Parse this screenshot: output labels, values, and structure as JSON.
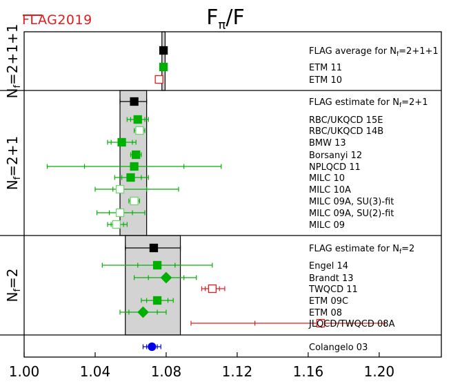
{
  "logo": {
    "text": "FLAG2019",
    "color": "#e41a1c"
  },
  "chart_data": {
    "type": "scatter",
    "title": "Fπ/F",
    "xlabel": "",
    "xlim": [
      1.0,
      1.235
    ],
    "xticks": [
      1.0,
      1.04,
      1.08,
      1.12,
      1.16,
      1.2
    ],
    "xtick_labels": [
      "1.00",
      "1.04",
      "1.08",
      "1.12",
      "1.16",
      "1.20"
    ],
    "colors": {
      "green": "#00b000",
      "red": "#e41a1c",
      "blue": "#0000ee",
      "black": "#000000",
      "band": "#d3d3d3"
    },
    "panels": [
      {
        "label": "Nf=2+1+1",
        "band": [
          1.0776,
          1.0794
        ],
        "points": [
          {
            "name": "FLAG average for Nf=2+1+1",
            "x": 1.0785,
            "lo": 1.0776,
            "hi": 1.0794,
            "stat_lo": 1.0776,
            "stat_hi": 1.0794,
            "marker": "square",
            "fill": "filled",
            "color": "#000000"
          },
          {
            "name": "ETM 11",
            "x": 1.0785,
            "lo": 1.0774,
            "hi": 1.0796,
            "stat_lo": 1.0774,
            "stat_hi": 1.0796,
            "marker": "square",
            "fill": "filled",
            "color": "#00b000"
          },
          {
            "name": "ETM 10",
            "x": 1.076,
            "lo": 1.0746,
            "hi": 1.0774,
            "stat_lo": 1.0746,
            "stat_hi": 1.0774,
            "marker": "square",
            "fill": "open",
            "color": "#e41a1c"
          }
        ]
      },
      {
        "label": "Nf=2+1",
        "band": [
          1.054,
          1.069
        ],
        "points": [
          {
            "name": "FLAG estimate for Nf=2+1",
            "x": 1.062,
            "lo": 1.054,
            "hi": 1.069,
            "stat_lo": 1.054,
            "stat_hi": 1.069,
            "marker": "square",
            "fill": "filled",
            "color": "#000000"
          },
          {
            "name": "RBC/UKQCD 15E",
            "x": 1.064,
            "lo": 1.058,
            "hi": 1.07,
            "stat_lo": 1.06,
            "stat_hi": 1.068,
            "marker": "square",
            "fill": "filled",
            "color": "#00b000"
          },
          {
            "name": "RBC/UKQCD 14B",
            "x": 1.065,
            "lo": 1.062,
            "hi": 1.068,
            "stat_lo": 1.063,
            "stat_hi": 1.067,
            "marker": "square",
            "fill": "light",
            "color": "#00b000"
          },
          {
            "name": "BMW 13",
            "x": 1.055,
            "lo": 1.047,
            "hi": 1.063,
            "stat_lo": 1.049,
            "stat_hi": 1.061,
            "marker": "square",
            "fill": "filled",
            "color": "#00b000"
          },
          {
            "name": "Borsanyi 12",
            "x": 1.063,
            "lo": 1.06,
            "hi": 1.066,
            "stat_lo": 1.061,
            "stat_hi": 1.065,
            "marker": "square",
            "fill": "filled",
            "color": "#00b000"
          },
          {
            "name": "NPLQCD 11",
            "x": 1.062,
            "lo": 1.013,
            "hi": 1.111,
            "stat_lo": 1.034,
            "stat_hi": 1.09,
            "marker": "square",
            "fill": "filled",
            "color": "#00b000"
          },
          {
            "name": "MILC 10",
            "x": 1.06,
            "lo": 1.051,
            "hi": 1.07,
            "stat_lo": 1.055,
            "stat_hi": 1.066,
            "marker": "square",
            "fill": "filled",
            "color": "#00b000"
          },
          {
            "name": "MILC 10A",
            "x": 1.054,
            "lo": 1.04,
            "hi": 1.087,
            "stat_lo": 1.05,
            "stat_hi": 1.069,
            "marker": "square",
            "fill": "light",
            "color": "#00b000"
          },
          {
            "name": "MILC 09A, SU(3)-fit",
            "x": 1.062,
            "lo": 1.059,
            "hi": 1.065,
            "stat_lo": 1.06,
            "stat_hi": 1.064,
            "marker": "square",
            "fill": "light",
            "color": "#00b000"
          },
          {
            "name": "MILC 09A, SU(2)-fit",
            "x": 1.054,
            "lo": 1.041,
            "hi": 1.068,
            "stat_lo": 1.048,
            "stat_hi": 1.061,
            "marker": "square",
            "fill": "light",
            "color": "#00b000"
          },
          {
            "name": "MILC 09",
            "x": 1.052,
            "lo": 1.047,
            "hi": 1.058,
            "stat_lo": 1.049,
            "stat_hi": 1.056,
            "marker": "square",
            "fill": "light",
            "color": "#00b000"
          }
        ]
      },
      {
        "label": "Nf=2",
        "band": [
          1.057,
          1.088
        ],
        "points": [
          {
            "name": "FLAG estimate for Nf=2",
            "x": 1.073,
            "lo": 1.057,
            "hi": 1.088,
            "stat_lo": 1.057,
            "stat_hi": 1.088,
            "marker": "square",
            "fill": "filled",
            "color": "#000000"
          },
          {
            "name": "Engel 14",
            "x": 1.075,
            "lo": 1.044,
            "hi": 1.106,
            "stat_lo": 1.064,
            "stat_hi": 1.085,
            "marker": "square",
            "fill": "filled",
            "color": "#00b000"
          },
          {
            "name": "Brandt 13",
            "x": 1.08,
            "lo": 1.062,
            "hi": 1.097,
            "stat_lo": 1.07,
            "stat_hi": 1.09,
            "marker": "diamond",
            "fill": "filled",
            "color": "#00b000"
          },
          {
            "name": "TWQCD 11",
            "x": 1.106,
            "lo": 1.1,
            "hi": 1.113,
            "stat_lo": 1.102,
            "stat_hi": 1.11,
            "marker": "square",
            "fill": "open",
            "color": "#e41a1c"
          },
          {
            "name": "ETM 09C",
            "x": 1.075,
            "lo": 1.066,
            "hi": 1.084,
            "stat_lo": 1.069,
            "stat_hi": 1.081,
            "marker": "square",
            "fill": "filled",
            "color": "#00b000"
          },
          {
            "name": "ETM 08",
            "x": 1.067,
            "lo": 1.054,
            "hi": 1.08,
            "stat_lo": 1.059,
            "stat_hi": 1.075,
            "marker": "diamond",
            "fill": "filled",
            "color": "#00b000"
          },
          {
            "name": "JLQCD/TWQCD 08A",
            "x": 1.167,
            "lo": 1.094,
            "hi": 1.203,
            "stat_lo": 1.13,
            "stat_hi": 1.203,
            "marker": "square",
            "fill": "open",
            "color": "#e41a1c"
          }
        ]
      },
      {
        "label": "",
        "band": null,
        "points": [
          {
            "name": "Colangelo 03",
            "x": 1.072,
            "lo": 1.067,
            "hi": 1.077,
            "stat_lo": 1.069,
            "stat_hi": 1.075,
            "marker": "circle",
            "fill": "filled",
            "color": "#0000ee"
          }
        ]
      }
    ]
  }
}
